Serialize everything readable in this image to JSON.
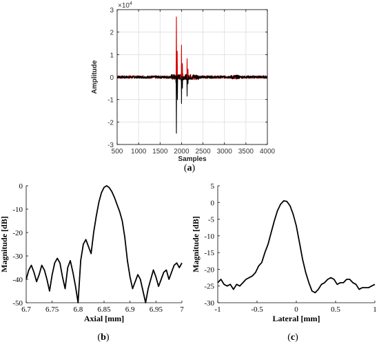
{
  "chart_data": [
    {
      "type": "line",
      "panel": "a",
      "xlabel": "Samples",
      "ylabel": "Amplitude",
      "exponent_label": "×10",
      "exponent_power": "4",
      "xlim": [
        500,
        4000
      ],
      "ylim": [
        -3,
        3
      ],
      "xticks": [
        500,
        1000,
        1500,
        2000,
        2500,
        3000,
        3500,
        4000
      ],
      "yticks": [
        -3,
        -2,
        -1,
        0,
        1,
        2,
        3
      ],
      "grid": true,
      "colors": {
        "series_red": "#d40000",
        "series_black": "#000000",
        "grid": "#dddddd"
      },
      "series": [
        {
          "color": "#d40000",
          "peaks": [
            {
              "x": 1880,
              "y": 2.68
            },
            {
              "x": 1900,
              "y": 1.15
            },
            {
              "x": 2000,
              "y": 1.42
            },
            {
              "x": 2020,
              "y": 0.6
            },
            {
              "x": 2130,
              "y": 0.82
            },
            {
              "x": 2150,
              "y": 0.35
            }
          ],
          "noise_level": 0.06
        },
        {
          "color": "#000000",
          "peaks": [
            {
              "x": 1880,
              "y": -2.5
            },
            {
              "x": 1905,
              "y": -1.0
            },
            {
              "x": 2000,
              "y": -1.18
            },
            {
              "x": 2020,
              "y": -0.5
            },
            {
              "x": 2130,
              "y": -0.85
            },
            {
              "x": 2150,
              "y": -0.3
            }
          ],
          "noise_level": 0.06
        }
      ]
    },
    {
      "type": "line",
      "panel": "b",
      "xlabel": "Axial [mm]",
      "ylabel": "Magnitude [dB]",
      "xlim": [
        6.7,
        7.0
      ],
      "ylim": [
        -50,
        0
      ],
      "xticks": [
        6.7,
        6.75,
        6.8,
        6.85,
        6.9,
        6.95,
        7.0
      ],
      "xticklabels": [
        "6.7",
        "6.75",
        "6.8",
        "6.85",
        "6.9",
        "6.95",
        "7"
      ],
      "yticks": [
        -50,
        -40,
        -30,
        -20,
        -10,
        0
      ],
      "grid": false,
      "series": [
        {
          "color": "#000000",
          "x": [
            6.7,
            6.705,
            6.71,
            6.715,
            6.72,
            6.725,
            6.73,
            6.735,
            6.74,
            6.745,
            6.75,
            6.755,
            6.76,
            6.765,
            6.77,
            6.775,
            6.78,
            6.785,
            6.79,
            6.795,
            6.8,
            6.805,
            6.81,
            6.815,
            6.82,
            6.825,
            6.83,
            6.835,
            6.84,
            6.845,
            6.85,
            6.855,
            6.86,
            6.865,
            6.87,
            6.875,
            6.88,
            6.885,
            6.89,
            6.895,
            6.9,
            6.905,
            6.91,
            6.915,
            6.92,
            6.925,
            6.93,
            6.935,
            6.94,
            6.945,
            6.95,
            6.955,
            6.96,
            6.965,
            6.97,
            6.975,
            6.98,
            6.985,
            6.99,
            6.995,
            7.0
          ],
          "y": [
            -40,
            -36,
            -34,
            -37,
            -41,
            -38,
            -34,
            -36,
            -40,
            -45,
            -38,
            -33,
            -31,
            -33,
            -39,
            -44,
            -35,
            -32,
            -37,
            -43,
            -50,
            -32,
            -25,
            -23,
            -26,
            -29,
            -20,
            -13,
            -7,
            -3,
            -0.7,
            0,
            -0.8,
            -2.5,
            -5,
            -8,
            -11,
            -15,
            -22,
            -32,
            -39,
            -44,
            -41,
            -38,
            -40,
            -45,
            -50,
            -44,
            -40,
            -36,
            -39,
            -43,
            -40,
            -37,
            -36,
            -40,
            -37,
            -34,
            -33,
            -35,
            -33
          ]
        }
      ]
    },
    {
      "type": "line",
      "panel": "c",
      "xlabel": "Lateral [mm]",
      "ylabel": "Magnitude [dB]",
      "xlim": [
        -1,
        1
      ],
      "ylim": [
        -30,
        5
      ],
      "xticks": [
        -1,
        -0.5,
        0,
        0.5,
        1
      ],
      "xticklabels": [
        "-1",
        "-0.5",
        "0",
        "0.5",
        "1"
      ],
      "yticks": [
        -30,
        -25,
        -20,
        -15,
        -10,
        -5,
        0,
        5
      ],
      "grid": false,
      "series": [
        {
          "color": "#000000",
          "x": [
            -1,
            -0.96,
            -0.92,
            -0.88,
            -0.84,
            -0.8,
            -0.76,
            -0.72,
            -0.68,
            -0.64,
            -0.6,
            -0.56,
            -0.52,
            -0.48,
            -0.44,
            -0.4,
            -0.36,
            -0.32,
            -0.28,
            -0.24,
            -0.2,
            -0.16,
            -0.12,
            -0.08,
            -0.04,
            0,
            0.04,
            0.08,
            0.12,
            0.16,
            0.2,
            0.24,
            0.28,
            0.32,
            0.36,
            0.4,
            0.44,
            0.48,
            0.52,
            0.56,
            0.6,
            0.64,
            0.68,
            0.72,
            0.76,
            0.8,
            0.84,
            0.88,
            0.92,
            0.96,
            1
          ],
          "y": [
            -24,
            -23,
            -24.5,
            -25,
            -24.5,
            -26,
            -24.5,
            -25,
            -24,
            -23,
            -22.5,
            -22,
            -21,
            -19,
            -18,
            -15,
            -12.5,
            -9,
            -5.5,
            -2.5,
            -0.5,
            0.5,
            0.3,
            -1,
            -3.5,
            -7,
            -12,
            -17,
            -21,
            -24,
            -26.5,
            -27,
            -26,
            -24.5,
            -24,
            -23,
            -22.5,
            -23,
            -24.5,
            -24,
            -24,
            -23,
            -23,
            -24,
            -24.5,
            -26,
            -25.5,
            -25.5,
            -25.5,
            -25,
            -24.5
          ]
        }
      ]
    }
  ],
  "panel_labels": [
    {
      "open": "(",
      "letter": "a",
      "close": ")"
    },
    {
      "open": "(",
      "letter": "b",
      "close": ")"
    },
    {
      "open": "(",
      "letter": "c",
      "close": ")"
    }
  ]
}
